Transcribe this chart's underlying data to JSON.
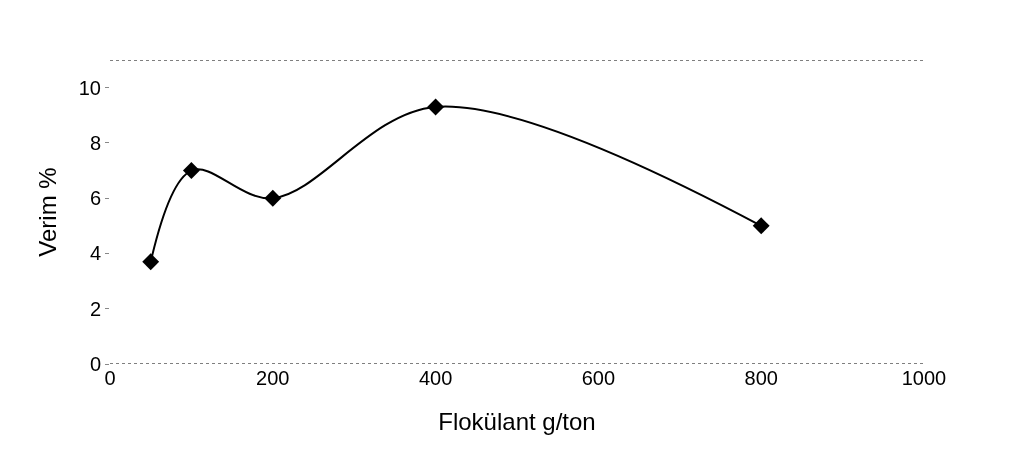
{
  "chart_data": {
    "type": "line",
    "xlabel": "Flokülant g/ton",
    "ylabel": "Verim %",
    "x": [
      50,
      100,
      200,
      400,
      800
    ],
    "series": [
      {
        "color": "#000000",
        "values": [
          3.7,
          7.0,
          6.0,
          9.3,
          5.0
        ]
      }
    ],
    "xlim": [
      0,
      1000
    ],
    "xticks": [
      0,
      200,
      400,
      600,
      800,
      1000
    ],
    "ylim": [
      0,
      11
    ],
    "yticks": [
      0,
      2,
      4,
      6,
      8,
      10
    ],
    "marker": "diamond",
    "line_style": "solid",
    "legend": false
  }
}
